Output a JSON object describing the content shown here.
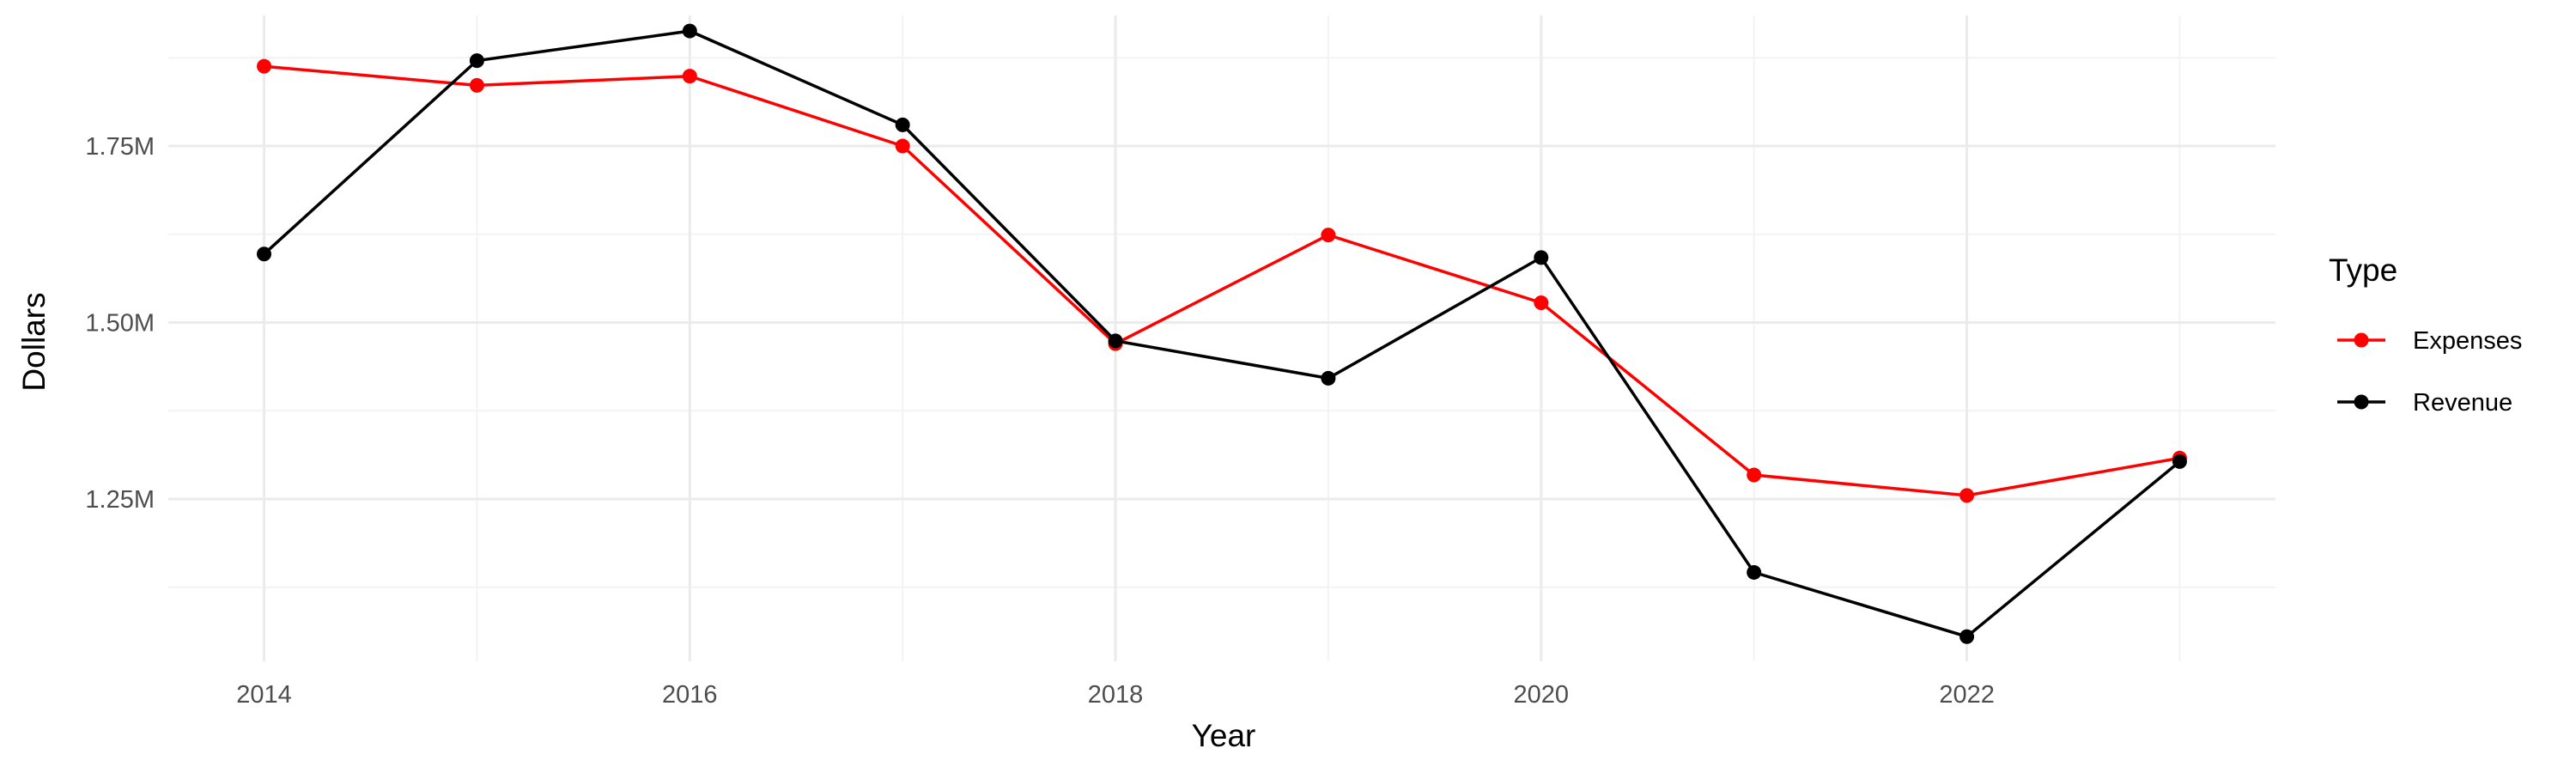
{
  "chart_data": {
    "type": "line",
    "xlabel": "Year",
    "ylabel": "Dollars",
    "x": [
      2014,
      2015,
      2016,
      2017,
      2018,
      2019,
      2020,
      2021,
      2022,
      2023
    ],
    "xlim": [
      2013.55,
      2023.45
    ],
    "x_ticks": [
      2014,
      2016,
      2018,
      2020,
      2022
    ],
    "x_tick_labels": [
      "2014",
      "2016",
      "2018",
      "2020",
      "2022"
    ],
    "ylim": [
      1020000,
      1935000
    ],
    "y_ticks": [
      1250000,
      1500000,
      1750000
    ],
    "y_tick_labels": [
      "1.25M",
      "1.50M",
      "1.75M"
    ],
    "grid": true,
    "legend": {
      "title": "Type",
      "placement": "right"
    },
    "series": [
      {
        "name": "Expenses",
        "color": "#ff0000",
        "values": [
          1863000,
          1836000,
          1849000,
          1750000,
          1470000,
          1624000,
          1528000,
          1284000,
          1255000,
          1308000
        ]
      },
      {
        "name": "Revenue",
        "color": "#000000",
        "values": [
          1597000,
          1871000,
          1913000,
          1780000,
          1474000,
          1421000,
          1592000,
          1146000,
          1055000,
          1303000
        ]
      }
    ]
  }
}
